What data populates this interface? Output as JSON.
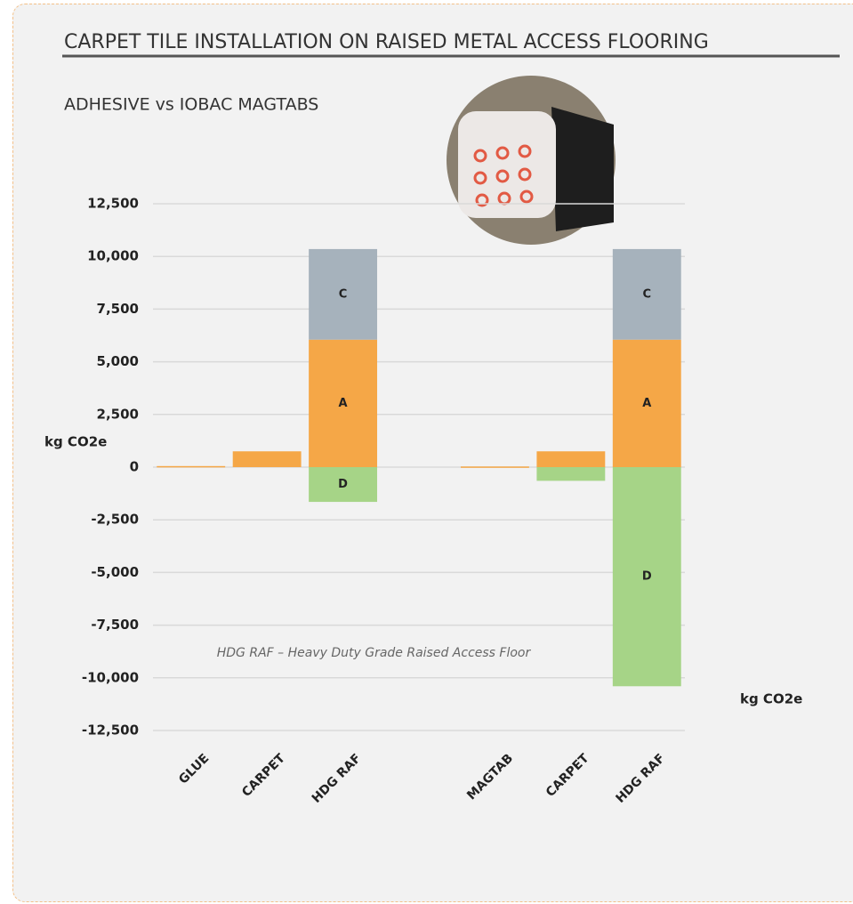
{
  "chart_data": {
    "type": "stacked_bar",
    "title": "CARPET TILE INSTALLATION ON RAISED METAL ACCESS FLOORING",
    "subtitle": "ADHESIVE vs IOBAC MAGTABS",
    "ylabel": "kg CO2e",
    "annotation": "HDG RAF – Heavy Duty Grade Raised Access Floor",
    "categories": [
      "GLUE",
      "CARPET",
      "HDG RAF",
      null,
      "MAGTAB",
      "CARPET",
      "HDG RAF"
    ],
    "series": [
      {
        "name": "A",
        "color": "#f5a747",
        "values": [
          50,
          750,
          6050,
          null,
          30,
          750,
          6050
        ]
      },
      {
        "name": "C",
        "color": "#a6b2bc",
        "values": [
          null,
          null,
          4300,
          null,
          null,
          null,
          4300
        ]
      },
      {
        "name": "D",
        "color": "#a6d487",
        "values": [
          null,
          null,
          -1650,
          null,
          null,
          -650,
          -10400
        ]
      }
    ],
    "ylim": [
      -12500,
      12500
    ],
    "yticks": [
      {
        "value": -12500,
        "label": "-12,500"
      },
      {
        "value": -10000,
        "label": "-10,000"
      },
      {
        "value": -7500,
        "label": "-7,500"
      },
      {
        "value": -5000,
        "label": "-5,000"
      },
      {
        "value": -2500,
        "label": "-2,500"
      },
      0,
      {
        "value": 2500,
        "label": "2,500"
      },
      {
        "value": 5000,
        "label": "5,000"
      },
      {
        "value": 7500,
        "label": "7,500"
      },
      {
        "value": 10000,
        "label": "10,000"
      },
      {
        "value": 12500,
        "label": "12,500"
      }
    ],
    "grid": true
  }
}
